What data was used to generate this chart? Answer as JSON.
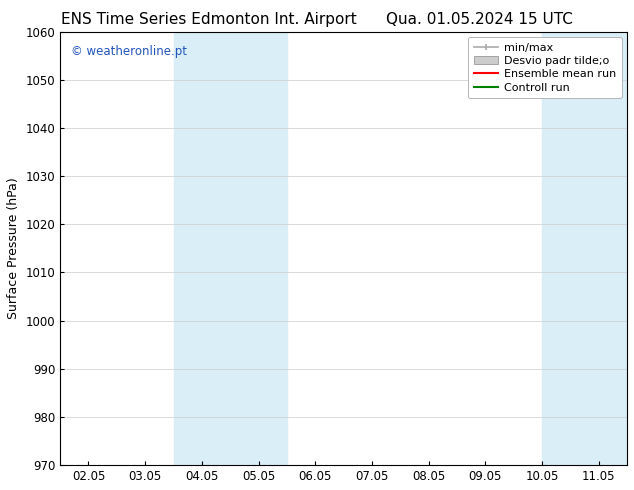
{
  "title_left": "ENS Time Series Edmonton Int. Airport",
  "title_right": "Qua. 01.05.2024 15 UTC",
  "ylabel": "Surface Pressure (hPa)",
  "ylim": [
    970,
    1060
  ],
  "yticks": [
    970,
    980,
    990,
    1000,
    1010,
    1020,
    1030,
    1040,
    1050,
    1060
  ],
  "xtick_positions": [
    0,
    1,
    2,
    3,
    4,
    5,
    6,
    7,
    8,
    9
  ],
  "xtick_labels": [
    "02.05",
    "03.05",
    "04.05",
    "05.05",
    "06.05",
    "07.05",
    "08.05",
    "09.05",
    "10.05",
    "11.05"
  ],
  "xlim": [
    -0.5,
    9.5
  ],
  "shaded_bands": [
    {
      "x_start": 1.5,
      "x_end": 3.5,
      "color": "#daeef8"
    },
    {
      "x_start": 8.0,
      "x_end": 9.5,
      "color": "#daeef8"
    }
  ],
  "watermark_text": "© weatheronline.pt",
  "watermark_color": "#2255bb",
  "bg_color": "#ffffff",
  "plot_bg_color": "#ffffff",
  "grid_color": "#cccccc",
  "title_fontsize": 11,
  "tick_fontsize": 8.5,
  "ylabel_fontsize": 9,
  "legend_label_fontsize": 8,
  "minmax_color": "#aaaaaa",
  "desvio_color": "#cccccc",
  "ensemble_color": "#ff0000",
  "control_color": "#008000",
  "legend_labels": [
    "min/max",
    "Desvio padr tilde;o",
    "Ensemble mean run",
    "Controll run"
  ]
}
